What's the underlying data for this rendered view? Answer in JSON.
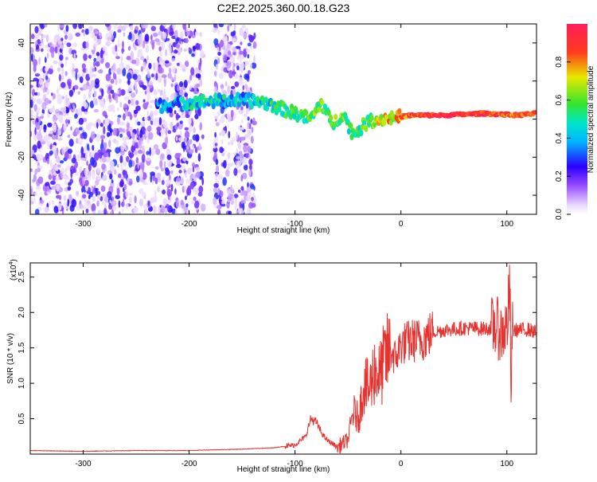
{
  "title": "C2E2.2025.360.00.18.G23",
  "colors": {
    "snr_line": "#e8322e",
    "background": "#ffffff"
  },
  "chart_data": [
    {
      "type": "heatmap",
      "name": "spectrogram",
      "xlabel": "Height of straight line (km)",
      "ylabel": "Frequency (Hz)",
      "xlim": [
        -350,
        128
      ],
      "ylim": [
        -50,
        50
      ],
      "xticks": [
        -300,
        -200,
        -100,
        0,
        100
      ],
      "yticks": [
        -40,
        -20,
        0,
        20,
        40
      ],
      "colorbar": {
        "label": "Normalized spectral amplitude",
        "range": [
          0,
          1
        ],
        "ticks": [
          "0.0",
          "0.2",
          "0.4",
          "0.6",
          "0.8"
        ]
      },
      "ridge": [
        {
          "x": -230,
          "y": 7,
          "a": 0.35
        },
        {
          "x": -210,
          "y": 8,
          "a": 0.35
        },
        {
          "x": -195,
          "y": 9,
          "a": 0.45
        },
        {
          "x": -150,
          "y": 10,
          "a": 0.4
        },
        {
          "x": -130,
          "y": 9,
          "a": 0.45
        },
        {
          "x": -115,
          "y": 6,
          "a": 0.5
        },
        {
          "x": -100,
          "y": 3,
          "a": 0.55
        },
        {
          "x": -85,
          "y": 0,
          "a": 0.55
        },
        {
          "x": -75,
          "y": 9,
          "a": 0.6
        },
        {
          "x": -65,
          "y": -3,
          "a": 0.55
        },
        {
          "x": -55,
          "y": 3,
          "a": 0.6
        },
        {
          "x": -45,
          "y": -8,
          "a": 0.5
        },
        {
          "x": -30,
          "y": -1,
          "a": 0.6
        },
        {
          "x": -20,
          "y": 0,
          "a": 0.7
        },
        {
          "x": -5,
          "y": 1,
          "a": 0.75
        },
        {
          "x": 10,
          "y": 2,
          "a": 0.85
        },
        {
          "x": 40,
          "y": 2,
          "a": 0.95
        },
        {
          "x": 80,
          "y": 3,
          "a": 0.9
        },
        {
          "x": 110,
          "y": 2,
          "a": 0.85
        },
        {
          "x": 128,
          "y": 3,
          "a": 0.8
        }
      ]
    },
    {
      "type": "line",
      "name": "snr",
      "xlabel": "Height of straight line (km)",
      "ylabel": "SNR (10 * v/v)",
      "y_multiplier": "(x10^4)",
      "y_multiplier_base": "(x10",
      "y_multiplier_exp": "4",
      "y_multiplier_close": ")",
      "xlim": [
        -350,
        128
      ],
      "ylim": [
        0,
        2.7
      ],
      "xticks": [
        -300,
        -200,
        -100,
        0,
        100
      ],
      "yticks": [
        0.5,
        1.0,
        1.5,
        2.0,
        2.5
      ],
      "x": [
        -350,
        -300,
        -250,
        -200,
        -180,
        -150,
        -120,
        -100,
        -90,
        -85,
        -80,
        -75,
        -70,
        -60,
        -50,
        -45,
        -40,
        -35,
        -30,
        -25,
        -20,
        -15,
        -10,
        -5,
        0,
        10,
        20,
        30,
        40,
        60,
        80,
        90,
        95,
        100,
        103,
        104,
        105,
        110,
        120,
        128
      ],
      "values": [
        0.05,
        0.04,
        0.05,
        0.05,
        0.06,
        0.07,
        0.09,
        0.13,
        0.25,
        0.5,
        0.45,
        0.3,
        0.2,
        0.1,
        0.2,
        0.6,
        0.5,
        1.0,
        0.9,
        1.2,
        1.1,
        1.35,
        1.45,
        1.35,
        1.55,
        1.6,
        1.62,
        1.72,
        1.75,
        1.78,
        1.77,
        1.8,
        1.7,
        1.8,
        2.3,
        0.68,
        1.75,
        1.75,
        1.76,
        1.72
      ]
    }
  ]
}
